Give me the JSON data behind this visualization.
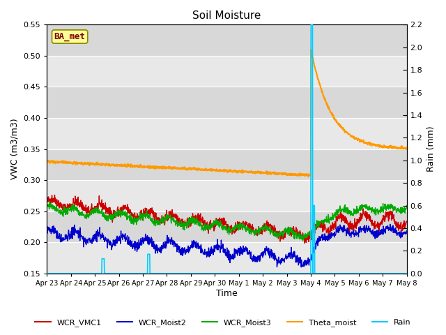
{
  "title": "Soil Moisture",
  "xlabel": "Time",
  "ylabel_left": "VWC (m3/m3)",
  "ylabel_right": "Rain (mm)",
  "ylim_left": [
    0.15,
    0.55
  ],
  "ylim_right": [
    0.0,
    2.2
  ],
  "yticks_left": [
    0.15,
    0.2,
    0.25,
    0.3,
    0.35,
    0.4,
    0.45,
    0.5,
    0.55
  ],
  "yticks_right": [
    0.0,
    0.2,
    0.4,
    0.6,
    0.8,
    1.0,
    1.2,
    1.4,
    1.6,
    1.8,
    2.0,
    2.2
  ],
  "background_color": "#dcdcdc",
  "background_band_light": "#e8e8e8",
  "background_band_dark": "#d0d0d0",
  "legend_labels": [
    "WCR_VMC1",
    "WCR_Moist2",
    "WCR_Moist3",
    "Theta_moist",
    "Rain"
  ],
  "legend_colors": [
    "#cc0000",
    "#0000cc",
    "#00aa00",
    "#ff9900",
    "#00ccff"
  ],
  "annotation_label": "BA_met",
  "annotation_color": "#800000",
  "annotation_bg": "#ffff99",
  "annotation_border": "#888800",
  "n_days": 15,
  "date_labels": [
    "Apr 23",
    "Apr 24",
    "Apr 25",
    "Apr 26",
    "Apr 27",
    "Apr 28",
    "Apr 29",
    "Apr 30",
    "May 1",
    "May 2",
    "May 3",
    "May 4",
    "May 5",
    "May 6",
    "May 7",
    "May 8"
  ]
}
